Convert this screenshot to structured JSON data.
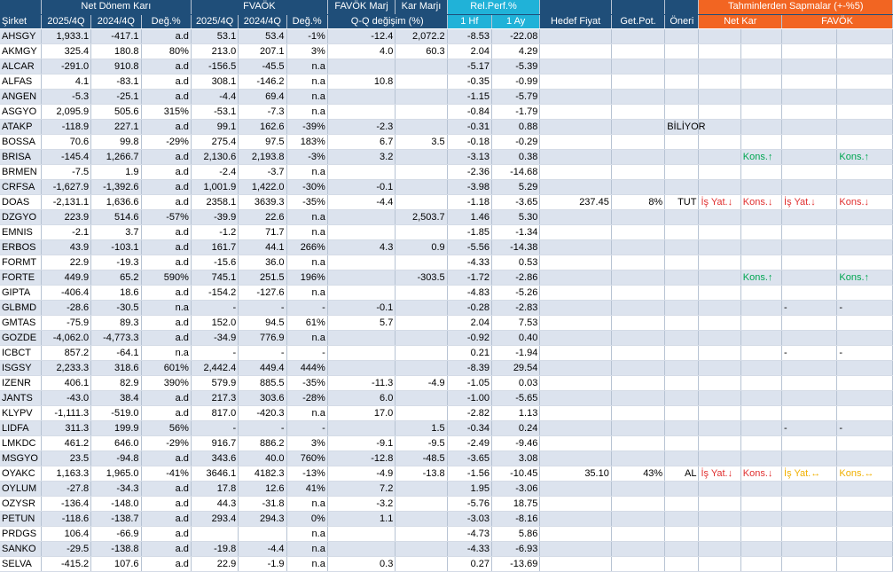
{
  "headers": {
    "sirket": "Şirket",
    "net_donem_kari": "Net Dönem Karı",
    "favok": "FVAÖK",
    "favok_marj": "FAVÖK Marj",
    "kar_marji": "Kar Marjı",
    "rel_perf": "Rel.Perf.%",
    "q_change": "Q-Q değişim (%)",
    "hedef_fiyat": "Hedef Fiyat",
    "get_pot": "Get.Pot.",
    "oneri": "Öneri",
    "sapmalar": "Tahminlerden Sapmalar (+-%5)",
    "sap_net": "Net Kar",
    "sap_favok": "FAVÖK",
    "p2025": "2025/4Q",
    "p2024": "2024/4Q",
    "deg": "Değ.%",
    "hf1": "1 Hf",
    "ay1": "1 Ay"
  },
  "rows": [
    {
      "s": "AHSGY",
      "n25": "1,933.1",
      "n24": "-417.1",
      "nd": "a.d",
      "f25": "53.1",
      "f24": "53.4",
      "fd": "-1%",
      "fm": "-12.4",
      "km": "2,072.2",
      "w": "-8.53",
      "m": "-22.08"
    },
    {
      "s": "AKMGY",
      "n25": "325.4",
      "n24": "180.8",
      "nd": "80%",
      "f25": "213.0",
      "f24": "207.1",
      "fd": "3%",
      "fm": "4.0",
      "km": "60.3",
      "w": "2.04",
      "m": "4.29"
    },
    {
      "s": "ALCAR",
      "n25": "-291.0",
      "n24": "910.8",
      "nd": "a.d",
      "f25": "-156.5",
      "f24": "-45.5",
      "fd": "n.a",
      "fm": "",
      "km": "",
      "w": "-5.17",
      "m": "-5.39"
    },
    {
      "s": "ALFAS",
      "n25": "4.1",
      "n24": "-83.1",
      "nd": "a.d",
      "f25": "308.1",
      "f24": "-146.2",
      "fd": "n.a",
      "fm": "10.8",
      "km": "",
      "w": "-0.35",
      "m": "-0.99"
    },
    {
      "s": "ANGEN",
      "n25": "-5.3",
      "n24": "-25.1",
      "nd": "a.d",
      "f25": "-4.4",
      "f24": "69.4",
      "fd": "n.a",
      "fm": "",
      "km": "",
      "w": "-1.15",
      "m": "-5.79"
    },
    {
      "s": "ASGYO",
      "n25": "2,095.9",
      "n24": "505.6",
      "nd": "315%",
      "f25": "-53.1",
      "f24": "-7.3",
      "fd": "n.a",
      "fm": "",
      "km": "",
      "w": "-0.84",
      "m": "-1.79"
    },
    {
      "s": "ATAKP",
      "n25": "-118.9",
      "n24": "227.1",
      "nd": "a.d",
      "f25": "99.1",
      "f24": "162.6",
      "fd": "-39%",
      "fm": "-2.3",
      "km": "",
      "w": "-0.31",
      "m": "0.88",
      "oneri": "BİLİYOR"
    },
    {
      "s": "BOSSA",
      "n25": "70.6",
      "n24": "99.8",
      "nd": "-29%",
      "f25": "275.4",
      "f24": "97.5",
      "fd": "183%",
      "fm": "6.7",
      "km": "3.5",
      "w": "-0.18",
      "m": "-0.29"
    },
    {
      "s": "BRISA",
      "n25": "-145.4",
      "n24": "1,266.7",
      "nd": "a.d",
      "f25": "2,130.6",
      "f24": "2,193.8",
      "fd": "-3%",
      "fm": "3.2",
      "km": "",
      "w": "-3.13",
      "m": "0.38",
      "snk2": "Kons.↑",
      "sfv2": "Kons.↑",
      "snk2c": "up",
      "sfv2c": "up"
    },
    {
      "s": "BRMEN",
      "n25": "-7.5",
      "n24": "1.9",
      "nd": "a.d",
      "f25": "-2.4",
      "f24": "-3.7",
      "fd": "n.a",
      "fm": "",
      "km": "",
      "w": "-2.36",
      "m": "-14.68"
    },
    {
      "s": "CRFSA",
      "n25": "-1,627.9",
      "n24": "-1,392.6",
      "nd": "a.d",
      "f25": "1,001.9",
      "f24": "1,422.0",
      "fd": "-30%",
      "fm": "-0.1",
      "km": "",
      "w": "-3.98",
      "m": "5.29"
    },
    {
      "s": "DOAS",
      "n25": "-2,131.1",
      "n24": "1,636.6",
      "nd": "a.d",
      "f25": "2358.1",
      "f24": "3639.3",
      "fd": "-35%",
      "fm": "-4.4",
      "km": "",
      "w": "-1.18",
      "m": "-3.65",
      "hf": "237.45",
      "gp": "8%",
      "oneri": "TUT",
      "snk1": "İş Yat.↓",
      "snk2": "Kons.↓",
      "sfv1": "İş Yat.↓",
      "sfv2": "Kons.↓",
      "snk1c": "down",
      "snk2c": "down",
      "sfv1c": "down",
      "sfv2c": "down"
    },
    {
      "s": "DZGYO",
      "n25": "223.9",
      "n24": "514.6",
      "nd": "-57%",
      "f25": "-39.9",
      "f24": "22.6",
      "fd": "n.a",
      "fm": "",
      "km": "2,503.7",
      "w": "1.46",
      "m": "5.30"
    },
    {
      "s": "EMNIS",
      "n25": "-2.1",
      "n24": "3.7",
      "nd": "a.d",
      "f25": "-1.2",
      "f24": "71.7",
      "fd": "n.a",
      "fm": "",
      "km": "",
      "w": "-1.85",
      "m": "-1.34"
    },
    {
      "s": "ERBOS",
      "n25": "43.9",
      "n24": "-103.1",
      "nd": "a.d",
      "f25": "161.7",
      "f24": "44.1",
      "fd": "266%",
      "fm": "4.3",
      "km": "0.9",
      "w": "-5.56",
      "m": "-14.38"
    },
    {
      "s": "FORMT",
      "n25": "22.9",
      "n24": "-19.3",
      "nd": "a.d",
      "f25": "-15.6",
      "f24": "36.0",
      "fd": "n.a",
      "fm": "",
      "km": "",
      "w": "-4.33",
      "m": "0.53"
    },
    {
      "s": "FORTE",
      "n25": "449.9",
      "n24": "65.2",
      "nd": "590%",
      "f25": "745.1",
      "f24": "251.5",
      "fd": "196%",
      "fm": "",
      "km": "-303.5",
      "w": "-1.72",
      "m": "-2.86",
      "snk2": "Kons.↑",
      "sfv2": "Kons.↑",
      "snk2c": "up",
      "sfv2c": "up"
    },
    {
      "s": "GIPTA",
      "n25": "-406.4",
      "n24": "18.6",
      "nd": "a.d",
      "f25": "-154.2",
      "f24": "-127.6",
      "fd": "n.a",
      "fm": "",
      "km": "",
      "w": "-4.83",
      "m": "-5.26"
    },
    {
      "s": "GLBMD",
      "n25": "-28.6",
      "n24": "-30.5",
      "nd": "n.a",
      "f25": "-",
      "f24": "-",
      "fd": "-",
      "fm": "-0.1",
      "km": "",
      "w": "-0.28",
      "m": "-2.83",
      "sfv1": "-",
      "sfv2": "-"
    },
    {
      "s": "GMTAS",
      "n25": "-75.9",
      "n24": "89.3",
      "nd": "a.d",
      "f25": "152.0",
      "f24": "94.5",
      "fd": "61%",
      "fm": "5.7",
      "km": "",
      "w": "2.04",
      "m": "7.53"
    },
    {
      "s": "GOZDE",
      "n25": "-4,062.0",
      "n24": "-4,773.3",
      "nd": "a.d",
      "f25": "-34.9",
      "f24": "776.9",
      "fd": "n.a",
      "fm": "",
      "km": "",
      "w": "-0.92",
      "m": "0.40"
    },
    {
      "s": "ICBCT",
      "n25": "857.2",
      "n24": "-64.1",
      "nd": "n.a",
      "f25": "-",
      "f24": "-",
      "fd": "-",
      "fm": "",
      "km": "",
      "w": "0.21",
      "m": "-1.94",
      "sfv1": "-",
      "sfv2": "-"
    },
    {
      "s": "ISGSY",
      "n25": "2,233.3",
      "n24": "318.6",
      "nd": "601%",
      "f25": "2,442.4",
      "f24": "449.4",
      "fd": "444%",
      "fm": "",
      "km": "",
      "w": "-8.39",
      "m": "29.54"
    },
    {
      "s": "IZENR",
      "n25": "406.1",
      "n24": "82.9",
      "nd": "390%",
      "f25": "579.9",
      "f24": "885.5",
      "fd": "-35%",
      "fm": "-11.3",
      "km": "-4.9",
      "w": "-1.05",
      "m": "0.03"
    },
    {
      "s": "JANTS",
      "n25": "-43.0",
      "n24": "38.4",
      "nd": "a.d",
      "f25": "217.3",
      "f24": "303.6",
      "fd": "-28%",
      "fm": "6.0",
      "km": "",
      "w": "-1.00",
      "m": "-5.65"
    },
    {
      "s": "KLYPV",
      "n25": "-1,111.3",
      "n24": "-519.0",
      "nd": "a.d",
      "f25": "817.0",
      "f24": "-420.3",
      "fd": "n.a",
      "fm": "17.0",
      "km": "",
      "w": "-2.82",
      "m": "1.13"
    },
    {
      "s": "LIDFA",
      "n25": "311.3",
      "n24": "199.9",
      "nd": "56%",
      "f25": "-",
      "f24": "-",
      "fd": "-",
      "fm": "",
      "km": "1.5",
      "w": "-0.34",
      "m": "0.24",
      "sfv1": "-",
      "sfv2": "-"
    },
    {
      "s": "LMKDC",
      "n25": "461.2",
      "n24": "646.0",
      "nd": "-29%",
      "f25": "916.7",
      "f24": "886.2",
      "fd": "3%",
      "fm": "-9.1",
      "km": "-9.5",
      "w": "-2.49",
      "m": "-9.46"
    },
    {
      "s": "MSGYO",
      "n25": "23.5",
      "n24": "-94.8",
      "nd": "a.d",
      "f25": "343.6",
      "f24": "40.0",
      "fd": "760%",
      "fm": "-12.8",
      "km": "-48.5",
      "w": "-3.65",
      "m": "3.08"
    },
    {
      "s": "OYAKC",
      "n25": "1,163.3",
      "n24": "1,965.0",
      "nd": "-41%",
      "f25": "3646.1",
      "f24": "4182.3",
      "fd": "-13%",
      "fm": "-4.9",
      "km": "-13.8",
      "w": "-1.56",
      "m": "-10.45",
      "hf": "35.10",
      "gp": "43%",
      "oneri": "AL",
      "snk1": "İş Yat.↓",
      "snk2": "Kons.↓",
      "sfv1": "İş Yat.↔",
      "sfv2": "Kons.↔",
      "snk1c": "down",
      "snk2c": "down",
      "sfv1c": "side",
      "sfv2c": "side"
    },
    {
      "s": "OYLUM",
      "n25": "-27.8",
      "n24": "-34.3",
      "nd": "a.d",
      "f25": "17.8",
      "f24": "12.6",
      "fd": "41%",
      "fm": "7.2",
      "km": "",
      "w": "1.95",
      "m": "-3.06"
    },
    {
      "s": "OZYSR",
      "n25": "-136.4",
      "n24": "-148.0",
      "nd": "a.d",
      "f25": "44.3",
      "f24": "-31.8",
      "fd": "n.a",
      "fm": "-3.2",
      "km": "",
      "w": "-5.76",
      "m": "18.75"
    },
    {
      "s": "PETUN",
      "n25": "-118.6",
      "n24": "-138.7",
      "nd": "a.d",
      "f25": "293.4",
      "f24": "294.3",
      "fd": "0%",
      "fm": "1.1",
      "km": "",
      "w": "-3.03",
      "m": "-8.16"
    },
    {
      "s": "PRDGS",
      "n25": "106.4",
      "n24": "-66.9",
      "nd": "a.d",
      "f25": "",
      "f24": "",
      "fd": "n.a",
      "fm": "",
      "km": "",
      "w": "-4.73",
      "m": "5.86"
    },
    {
      "s": "SANKO",
      "n25": "-29.5",
      "n24": "-138.8",
      "nd": "a.d",
      "f25": "-19.8",
      "f24": "-4.4",
      "fd": "n.a",
      "fm": "",
      "km": "",
      "w": "-4.33",
      "m": "-6.93"
    },
    {
      "s": "SELVA",
      "n25": "-415.2",
      "n24": "107.6",
      "nd": "a.d",
      "f25": "22.9",
      "f24": "-1.9",
      "fd": "n.a",
      "fm": "0.3",
      "km": "",
      "w": "0.27",
      "m": "-13.69"
    }
  ]
}
